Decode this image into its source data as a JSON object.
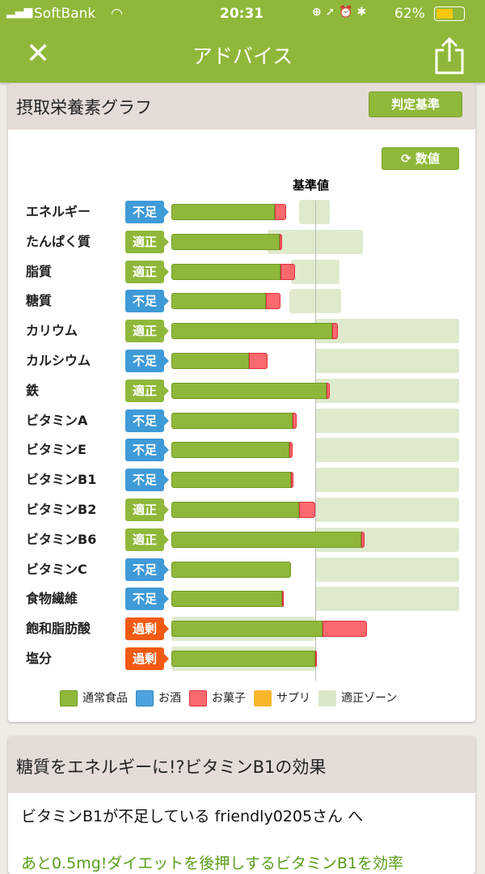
{
  "status_bar": {
    "carrier": "SoftBank",
    "time": "20:31",
    "battery": "62%"
  },
  "nav": {
    "title": "アドバイス",
    "close_icon": "close-icon",
    "share_icon": "share-icon"
  },
  "graph_card": {
    "title": "摂取栄養素グラフ",
    "criteria_button": "判定基準",
    "value_toggle_button": "数値",
    "reference_label": "基準値"
  },
  "colors": {
    "normal_food": "#8fb83a",
    "alcohol": "#4fa3dc",
    "snacks": "#f9696e",
    "supplement": "#f9b62b",
    "zone": "#dbe8c8",
    "status_short": "#3f9ad8",
    "status_ok": "#8fb83a",
    "status_over": "#f25a14"
  },
  "chart_data": {
    "type": "bar",
    "orientation": "horizontal",
    "stacked": true,
    "unit": "% of 基準値",
    "reference_value": 100,
    "legend": [
      "通常食品",
      "お酒",
      "お菓子",
      "サプリ",
      "適正ゾーン"
    ],
    "rows": [
      {
        "name": "エネルギー",
        "status": "不足",
        "food": 72,
        "snacks": 8,
        "zone": [
          89,
          110
        ]
      },
      {
        "name": "たんぱく質",
        "status": "適正",
        "food": 75,
        "snacks": 2,
        "zone": [
          67,
          133
        ]
      },
      {
        "name": "脂質",
        "status": "適正",
        "food": 76,
        "snacks": 10,
        "zone": [
          83,
          117
        ]
      },
      {
        "name": "糖質",
        "status": "不足",
        "food": 66,
        "snacks": 10,
        "zone": [
          82,
          118
        ]
      },
      {
        "name": "カリウム",
        "status": "適正",
        "food": 112,
        "snacks": 4,
        "zone": [
          100,
          200
        ]
      },
      {
        "name": "カルシウム",
        "status": "不足",
        "food": 54,
        "snacks": 13,
        "zone": [
          100,
          200
        ]
      },
      {
        "name": "鉄",
        "status": "適正",
        "food": 108,
        "snacks": 2,
        "zone": [
          100,
          200
        ]
      },
      {
        "name": "ビタミンA",
        "status": "不足",
        "food": 84,
        "snacks": 3,
        "zone": [
          100,
          200
        ]
      },
      {
        "name": "ビタミンE",
        "status": "不足",
        "food": 82,
        "snacks": 2,
        "zone": [
          100,
          200
        ]
      },
      {
        "name": "ビタミンB1",
        "status": "不足",
        "food": 83,
        "snacks": 2,
        "zone": [
          100,
          200
        ]
      },
      {
        "name": "ビタミンB2",
        "status": "適正",
        "food": 89,
        "snacks": 11,
        "zone": [
          100,
          200
        ]
      },
      {
        "name": "ビタミンB6",
        "status": "適正",
        "food": 132,
        "snacks": 2,
        "zone": [
          100,
          200
        ]
      },
      {
        "name": "ビタミンC",
        "status": "不足",
        "food": 83,
        "snacks": 0,
        "zone": [
          100,
          200
        ]
      },
      {
        "name": "食物繊維",
        "status": "不足",
        "food": 77,
        "snacks": 1,
        "zone": [
          100,
          200
        ]
      },
      {
        "name": "飽和脂肪酸",
        "status": "過剰",
        "food": 105,
        "snacks": 31,
        "zone": [
          0,
          100
        ]
      },
      {
        "name": "塩分",
        "status": "過剰",
        "food": 100,
        "snacks": 1,
        "zone": [
          0,
          100
        ]
      }
    ]
  },
  "article_card": {
    "title": "糖質をエネルギーに!?ビタミンB1の効果",
    "greeting": "ビタミンB1が不足している friendly0205さん へ",
    "teaser": "あと0.5mg!ダイエットを後押しするビタミンB1を効率"
  }
}
